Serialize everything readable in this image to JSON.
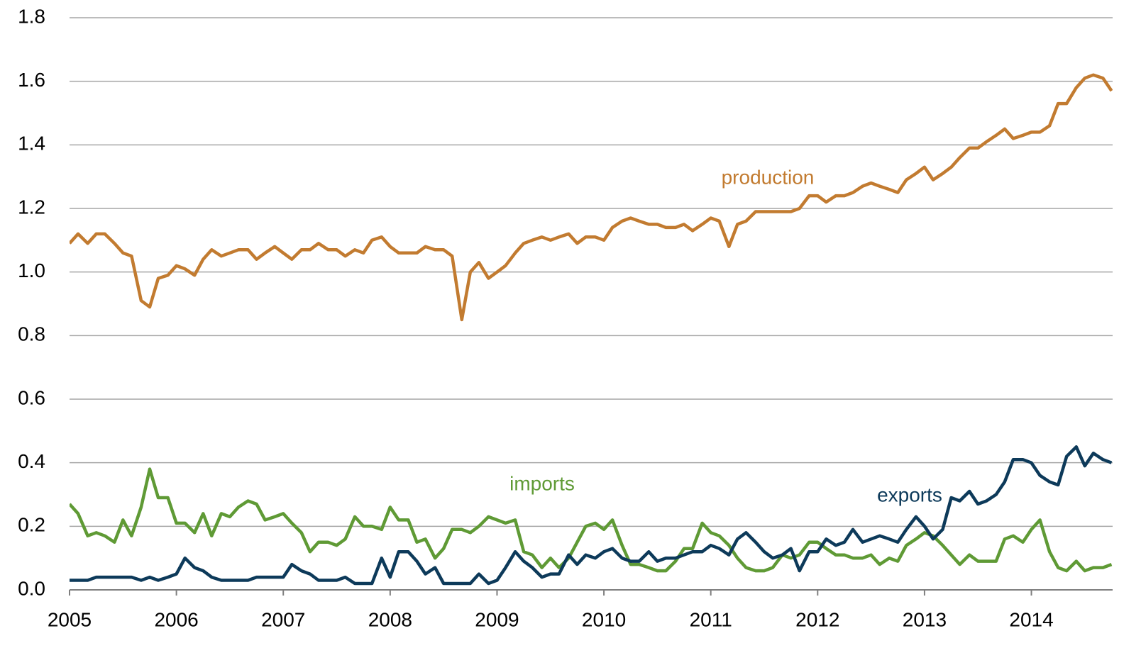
{
  "chart_data": {
    "type": "line",
    "x": [
      2005.0,
      2005.08,
      2005.17,
      2005.25,
      2005.33,
      2005.42,
      2005.5,
      2005.58,
      2005.67,
      2005.75,
      2005.83,
      2005.92,
      2006.0,
      2006.08,
      2006.17,
      2006.25,
      2006.33,
      2006.42,
      2006.5,
      2006.58,
      2006.67,
      2006.75,
      2006.83,
      2006.92,
      2007.0,
      2007.08,
      2007.17,
      2007.25,
      2007.33,
      2007.42,
      2007.5,
      2007.58,
      2007.67,
      2007.75,
      2007.83,
      2007.92,
      2008.0,
      2008.08,
      2008.17,
      2008.25,
      2008.33,
      2008.42,
      2008.5,
      2008.58,
      2008.67,
      2008.75,
      2008.83,
      2008.92,
      2009.0,
      2009.08,
      2009.17,
      2009.25,
      2009.33,
      2009.42,
      2009.5,
      2009.58,
      2009.67,
      2009.75,
      2009.83,
      2009.92,
      2010.0,
      2010.08,
      2010.17,
      2010.25,
      2010.33,
      2010.42,
      2010.5,
      2010.58,
      2010.67,
      2010.75,
      2010.83,
      2010.92,
      2011.0,
      2011.08,
      2011.17,
      2011.25,
      2011.33,
      2011.42,
      2011.5,
      2011.58,
      2011.67,
      2011.75,
      2011.83,
      2011.92,
      2012.0,
      2012.08,
      2012.17,
      2012.25,
      2012.33,
      2012.42,
      2012.5,
      2012.58,
      2012.67,
      2012.75,
      2012.83,
      2012.92,
      2013.0,
      2013.08,
      2013.17,
      2013.25,
      2013.33,
      2013.42,
      2013.5,
      2013.58,
      2013.67,
      2013.75,
      2013.83,
      2013.92,
      2014.0,
      2014.08,
      2014.17,
      2014.25,
      2014.33,
      2014.42,
      2014.5,
      2014.58,
      2014.67,
      2014.75
    ],
    "series": [
      {
        "name": "production",
        "color": "#c27b30",
        "values": [
          1.09,
          1.12,
          1.09,
          1.12,
          1.12,
          1.09,
          1.06,
          1.05,
          0.91,
          0.89,
          0.98,
          0.99,
          1.02,
          1.01,
          0.99,
          1.04,
          1.07,
          1.05,
          1.06,
          1.07,
          1.07,
          1.04,
          1.06,
          1.08,
          1.06,
          1.04,
          1.07,
          1.07,
          1.09,
          1.07,
          1.07,
          1.05,
          1.07,
          1.06,
          1.1,
          1.11,
          1.08,
          1.06,
          1.06,
          1.06,
          1.08,
          1.07,
          1.07,
          1.05,
          0.85,
          1.0,
          1.03,
          0.98,
          1.0,
          1.02,
          1.06,
          1.09,
          1.1,
          1.11,
          1.1,
          1.11,
          1.12,
          1.09,
          1.11,
          1.11,
          1.1,
          1.14,
          1.16,
          1.17,
          1.16,
          1.15,
          1.15,
          1.14,
          1.14,
          1.15,
          1.13,
          1.15,
          1.17,
          1.16,
          1.08,
          1.15,
          1.16,
          1.19,
          1.19,
          1.19,
          1.19,
          1.19,
          1.2,
          1.24,
          1.24,
          1.22,
          1.24,
          1.24,
          1.25,
          1.27,
          1.28,
          1.27,
          1.26,
          1.25,
          1.29,
          1.31,
          1.33,
          1.29,
          1.31,
          1.33,
          1.36,
          1.39,
          1.39,
          1.41,
          1.43,
          1.45,
          1.42,
          1.43,
          1.44,
          1.44,
          1.46,
          1.53,
          1.53,
          1.58,
          1.61,
          1.62,
          1.61,
          1.57
        ]
      },
      {
        "name": "imports",
        "color": "#5f9a35",
        "values": [
          0.27,
          0.24,
          0.17,
          0.18,
          0.17,
          0.15,
          0.22,
          0.17,
          0.26,
          0.38,
          0.29,
          0.29,
          0.21,
          0.21,
          0.18,
          0.24,
          0.17,
          0.24,
          0.23,
          0.26,
          0.28,
          0.27,
          0.22,
          0.23,
          0.24,
          0.21,
          0.18,
          0.12,
          0.15,
          0.15,
          0.14,
          0.16,
          0.23,
          0.2,
          0.2,
          0.19,
          0.26,
          0.22,
          0.22,
          0.15,
          0.16,
          0.1,
          0.13,
          0.19,
          0.19,
          0.18,
          0.2,
          0.23,
          0.22,
          0.21,
          0.22,
          0.12,
          0.11,
          0.07,
          0.1,
          0.07,
          0.1,
          0.15,
          0.2,
          0.21,
          0.19,
          0.22,
          0.14,
          0.08,
          0.08,
          0.07,
          0.06,
          0.06,
          0.09,
          0.13,
          0.13,
          0.21,
          0.18,
          0.17,
          0.14,
          0.1,
          0.07,
          0.06,
          0.06,
          0.07,
          0.11,
          0.1,
          0.11,
          0.15,
          0.15,
          0.13,
          0.11,
          0.11,
          0.1,
          0.1,
          0.11,
          0.08,
          0.1,
          0.09,
          0.14,
          0.16,
          0.18,
          0.17,
          0.14,
          0.11,
          0.08,
          0.11,
          0.09,
          0.09,
          0.09,
          0.16,
          0.17,
          0.15,
          0.19,
          0.22,
          0.12,
          0.07,
          0.06,
          0.09,
          0.06,
          0.07,
          0.07,
          0.08
        ]
      },
      {
        "name": "exports",
        "color": "#0d3a5a",
        "values": [
          0.03,
          0.03,
          0.03,
          0.04,
          0.04,
          0.04,
          0.04,
          0.04,
          0.03,
          0.04,
          0.03,
          0.04,
          0.05,
          0.1,
          0.07,
          0.06,
          0.04,
          0.03,
          0.03,
          0.03,
          0.03,
          0.04,
          0.04,
          0.04,
          0.04,
          0.08,
          0.06,
          0.05,
          0.03,
          0.03,
          0.03,
          0.04,
          0.02,
          0.02,
          0.02,
          0.1,
          0.04,
          0.12,
          0.12,
          0.09,
          0.05,
          0.07,
          0.02,
          0.02,
          0.02,
          0.02,
          0.05,
          0.02,
          0.03,
          0.07,
          0.12,
          0.09,
          0.07,
          0.04,
          0.05,
          0.05,
          0.11,
          0.08,
          0.11,
          0.1,
          0.12,
          0.13,
          0.1,
          0.09,
          0.09,
          0.12,
          0.09,
          0.1,
          0.1,
          0.11,
          0.12,
          0.12,
          0.14,
          0.13,
          0.11,
          0.16,
          0.18,
          0.15,
          0.12,
          0.1,
          0.11,
          0.13,
          0.06,
          0.12,
          0.12,
          0.16,
          0.14,
          0.15,
          0.19,
          0.15,
          0.16,
          0.17,
          0.16,
          0.15,
          0.19,
          0.23,
          0.2,
          0.16,
          0.19,
          0.29,
          0.28,
          0.31,
          0.27,
          0.28,
          0.3,
          0.34,
          0.41,
          0.41,
          0.4,
          0.36,
          0.34,
          0.33,
          0.42,
          0.45,
          0.39,
          0.43,
          0.41,
          0.4
        ]
      }
    ],
    "xlim": [
      2005,
      2014.76
    ],
    "xticks": [
      2005,
      2006,
      2007,
      2008,
      2009,
      2010,
      2011,
      2012,
      2013,
      2014
    ],
    "ylim": [
      0,
      1.8
    ],
    "yticks": [
      {
        "value": 0,
        "label": "0.0"
      },
      0.2,
      0.4,
      0.6,
      0.8,
      {
        "value": 1,
        "label": "1.0"
      },
      1.2,
      1.4,
      1.6,
      1.8
    ],
    "grid": true
  }
}
